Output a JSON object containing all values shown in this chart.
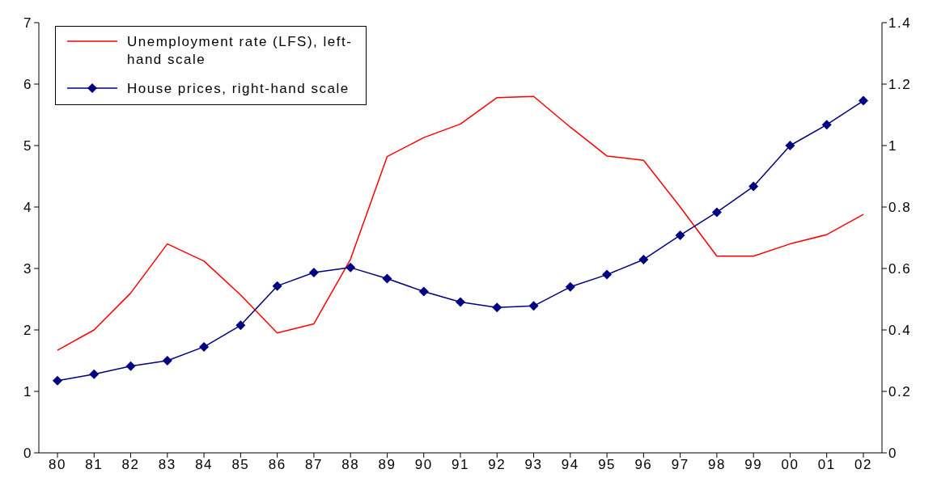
{
  "chart_data": {
    "type": "line",
    "categories": [
      "80",
      "81",
      "82",
      "83",
      "84",
      "85",
      "86",
      "87",
      "88",
      "89",
      "90",
      "91",
      "92",
      "93",
      "94",
      "95",
      "96",
      "97",
      "98",
      "99",
      "00",
      "01",
      "02"
    ],
    "series": [
      {
        "name": "Unemployment rate (LFS), left-hand scale",
        "color": "#ff0000",
        "marker": "none",
        "values": [
          1.67,
          2.0,
          2.6,
          3.4,
          3.12,
          2.57,
          1.95,
          2.1,
          3.15,
          4.82,
          5.13,
          5.35,
          5.78,
          5.8,
          5.3,
          4.83,
          4.76,
          4.0,
          3.2,
          3.2,
          3.4,
          3.55,
          3.88
        ]
      },
      {
        "name": "House prices, right-hand scale",
        "color": "#000080",
        "marker": "diamond",
        "axis": "y2",
        "values": [
          0.235,
          0.256,
          0.282,
          0.3,
          0.345,
          0.415,
          0.543,
          0.587,
          0.603,
          0.567,
          0.525,
          0.491,
          0.473,
          0.478,
          0.54,
          0.58,
          0.629,
          0.708,
          0.783,
          0.867,
          1.0,
          1.068,
          1.146
        ]
      }
    ],
    "ylim": [
      0,
      7
    ],
    "yticks": [
      0,
      1,
      2,
      3,
      4,
      5,
      6,
      7
    ],
    "y2lim": [
      0,
      1.4
    ],
    "y2ticks": [
      0,
      0.2,
      0.4,
      0.6,
      0.8,
      1,
      1.2,
      1.4
    ],
    "grid": false,
    "legend": "top left",
    "line_style": "solid"
  }
}
